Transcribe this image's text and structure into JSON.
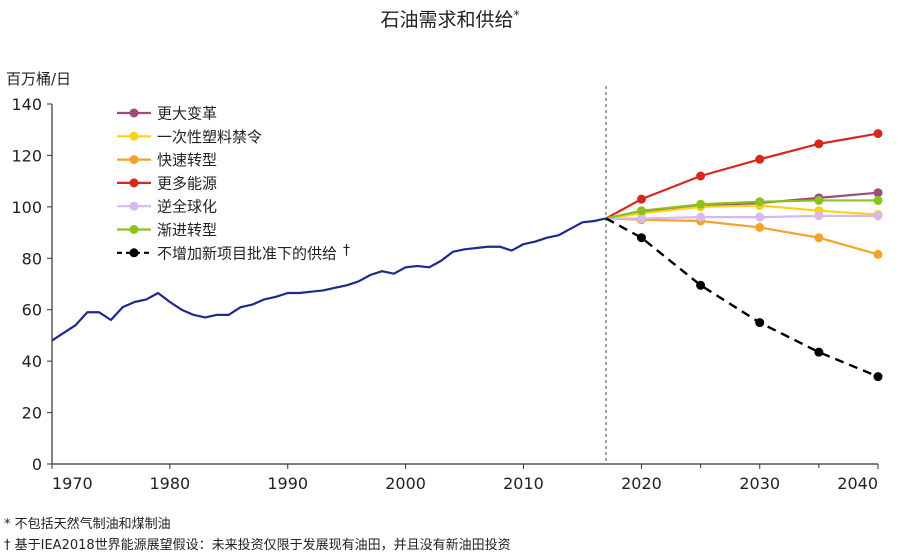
{
  "chart_data": {
    "type": "line",
    "title": "石油需求和供给",
    "title_mark": "*",
    "ylabel": "百万桶/日",
    "xlabel": "",
    "xlim": [
      1970,
      2040
    ],
    "ylim": [
      0,
      140
    ],
    "x_ticks": [
      1970,
      1980,
      1990,
      2000,
      2010,
      2020,
      2030,
      2040
    ],
    "y_ticks": [
      0,
      20,
      40,
      60,
      80,
      100,
      120,
      140
    ],
    "divider_x": 2017,
    "grid": false,
    "legend_position": "top-left",
    "history": {
      "color": "#1f2a8a",
      "x": [
        1970,
        1971,
        1972,
        1973,
        1974,
        1975,
        1976,
        1977,
        1978,
        1979,
        1980,
        1981,
        1982,
        1983,
        1984,
        1985,
        1986,
        1987,
        1988,
        1989,
        1990,
        1991,
        1992,
        1993,
        1994,
        1995,
        1996,
        1997,
        1998,
        1999,
        2000,
        2001,
        2002,
        2003,
        2004,
        2005,
        2006,
        2007,
        2008,
        2009,
        2010,
        2011,
        2012,
        2013,
        2014,
        2015,
        2016,
        2017
      ],
      "y": [
        48,
        51,
        54,
        59,
        59,
        56,
        61,
        63,
        64,
        66.5,
        63,
        60,
        58,
        57,
        58,
        58,
        61,
        62,
        64,
        65,
        66.5,
        66.5,
        67,
        67.5,
        68.5,
        69.5,
        71,
        73.5,
        75,
        74,
        76.5,
        77,
        76.5,
        79,
        82.5,
        83.5,
        84,
        84.5,
        84.5,
        83,
        85.5,
        86.5,
        88,
        89,
        91.5,
        94,
        94.5,
        95.5
      ]
    },
    "series": [
      {
        "name": "更大变革",
        "color": "#9e4b7a",
        "dashed": false,
        "x": [
          2017,
          2020,
          2025,
          2030,
          2035,
          2040
        ],
        "y": [
          95.5,
          98,
          100.5,
          101.5,
          103.5,
          105.5
        ]
      },
      {
        "name": "一次性塑料禁令",
        "color": "#f7d417",
        "dashed": false,
        "x": [
          2017,
          2020,
          2025,
          2030,
          2035,
          2040
        ],
        "y": [
          95.5,
          97.5,
          100,
          100.5,
          98.5,
          97
        ]
      },
      {
        "name": "快速转型",
        "color": "#f2a428",
        "dashed": false,
        "x": [
          2017,
          2020,
          2025,
          2030,
          2035,
          2040
        ],
        "y": [
          95.5,
          95,
          94.5,
          92,
          88,
          81.5
        ]
      },
      {
        "name": "更多能源",
        "color": "#d42a1e",
        "dashed": false,
        "x": [
          2017,
          2020,
          2025,
          2030,
          2035,
          2040
        ],
        "y": [
          95.5,
          103,
          112,
          118.5,
          124.5,
          128.5
        ]
      },
      {
        "name": "逆全球化",
        "color": "#d9b8f0",
        "dashed": false,
        "x": [
          2017,
          2020,
          2025,
          2030,
          2035,
          2040
        ],
        "y": [
          95.5,
          95.5,
          96,
          96,
          96.5,
          96.5
        ]
      },
      {
        "name": "渐进转型",
        "color": "#8cc21f",
        "dashed": false,
        "x": [
          2017,
          2020,
          2025,
          2030,
          2035,
          2040
        ],
        "y": [
          95.5,
          98.5,
          101,
          102,
          102.5,
          102.5
        ]
      },
      {
        "name": "不增加新项目批准下的供给",
        "name_mark": "†",
        "color": "#000000",
        "dashed": true,
        "x": [
          2017,
          2020,
          2025,
          2030,
          2035,
          2040
        ],
        "y": [
          95.5,
          88,
          69.5,
          55,
          43.5,
          34
        ]
      }
    ],
    "footnotes": [
      "* 不包括天然气制油和煤制油",
      "† 基于IEA2018世界能源展望假设：未来投资仅限于发展现有油田，并且没有新油田投资"
    ]
  }
}
